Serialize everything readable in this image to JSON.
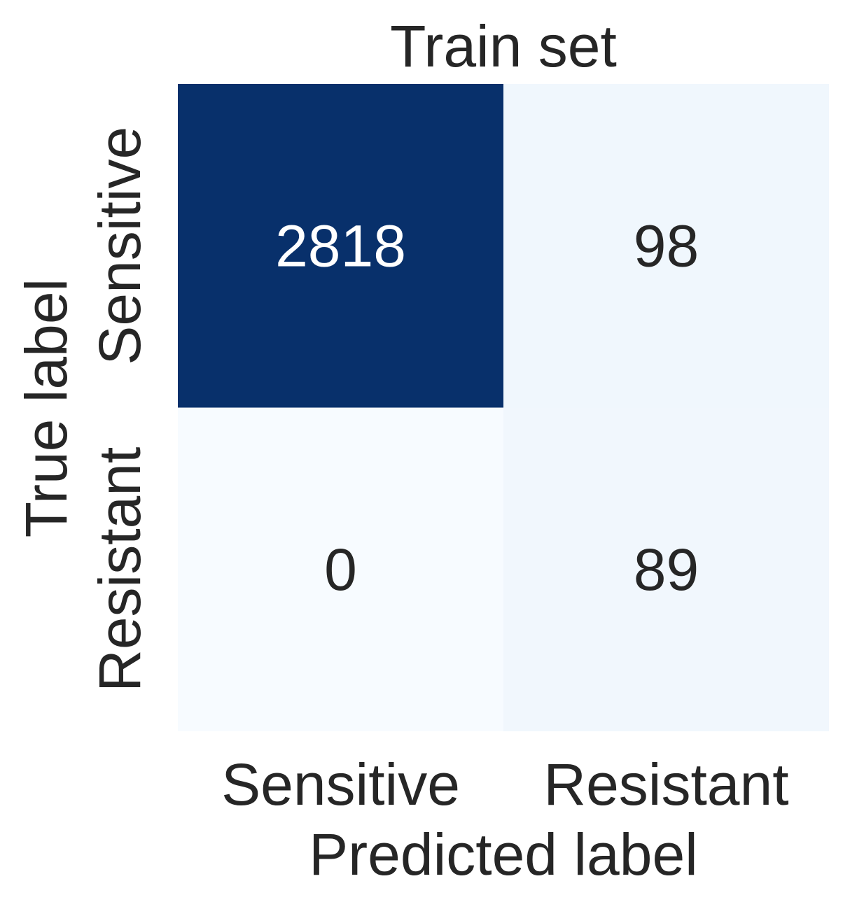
{
  "chart_data": {
    "type": "heatmap",
    "title": "Train set",
    "xlabel": "Predicted label",
    "ylabel": "True label",
    "x_categories": [
      "Sensitive",
      "Resistant"
    ],
    "y_categories": [
      "Sensitive",
      "Resistant"
    ],
    "values": [
      [
        2818,
        98
      ],
      [
        0,
        89
      ]
    ],
    "colormap": "Blues",
    "colorbar": false,
    "grid": false
  },
  "colors": {
    "cmap_low": "#f7fbff",
    "cmap_high": "#08306b",
    "text_dark": "#262626",
    "text_light": "#ffffff",
    "background": "#ffffff"
  }
}
